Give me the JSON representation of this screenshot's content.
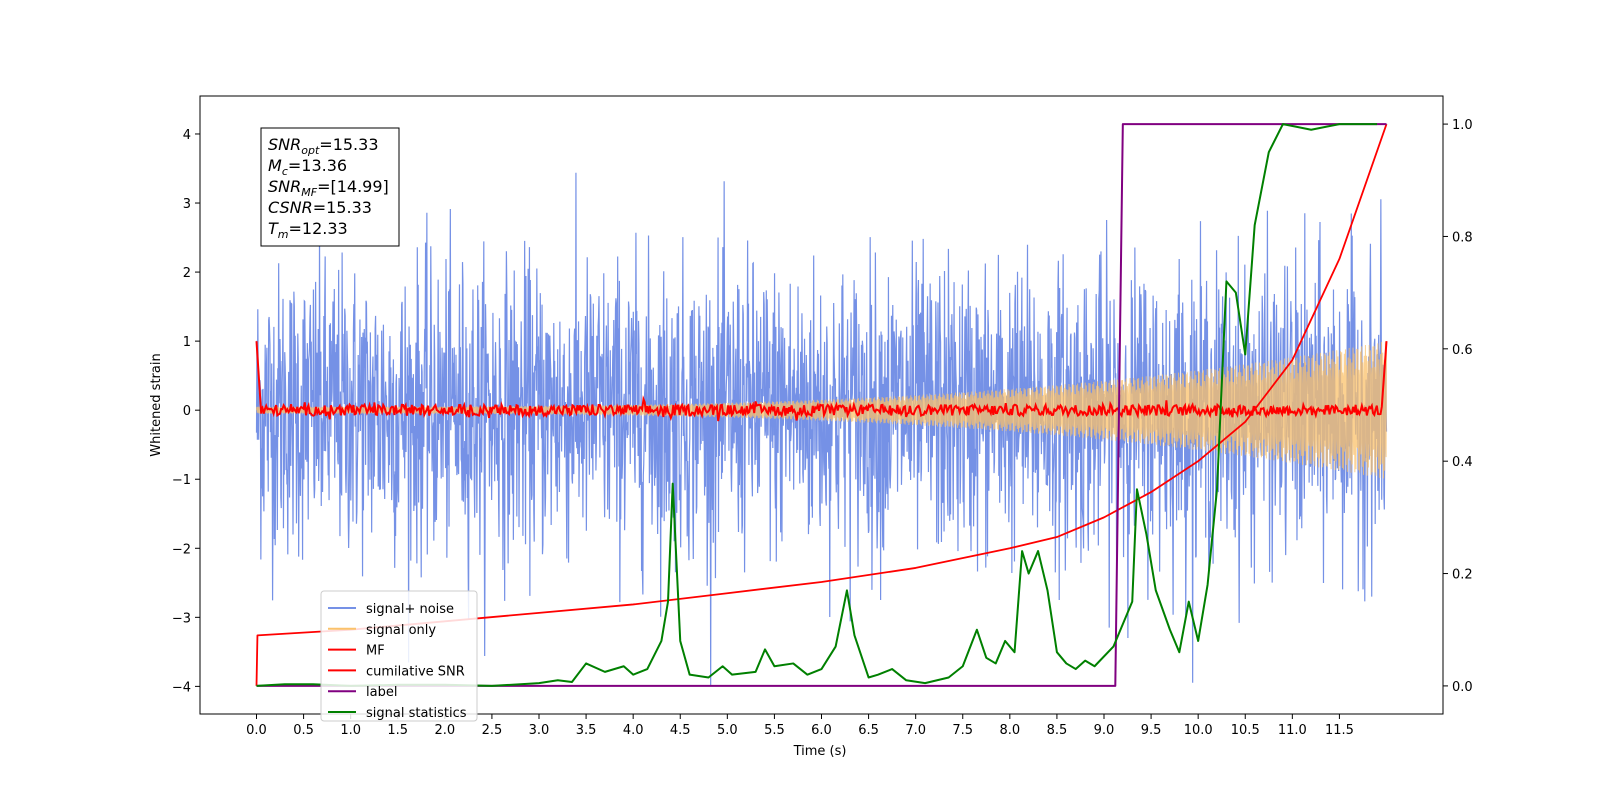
{
  "chart_data": {
    "type": "line",
    "xlabel": "Time (s)",
    "ylabel_left": "Whitened strain",
    "ylabel_right": "",
    "xlim": [
      -0.6,
      12.6
    ],
    "ylim_left": [
      -4.4,
      4.55
    ],
    "ylim_right": [
      -0.05,
      1.05
    ],
    "x_ticks": [
      "0.0",
      "0.5",
      "1.0",
      "1.5",
      "2.0",
      "2.5",
      "3.0",
      "3.5",
      "4.0",
      "4.5",
      "5.0",
      "5.5",
      "6.0",
      "6.5",
      "7.0",
      "7.5",
      "8.0",
      "8.5",
      "9.0",
      "9.5",
      "10.0",
      "10.5",
      "11.0",
      "11.5"
    ],
    "y_ticks_left": [
      "−4",
      "−3",
      "−2",
      "−1",
      "0",
      "1",
      "2",
      "3",
      "4"
    ],
    "y_ticks_right": [
      "0.0",
      "0.2",
      "0.4",
      "0.6",
      "0.8",
      "1.0"
    ],
    "grid": false,
    "legend_position": "lower-left",
    "colors": {
      "signal_noise": "#7591e6",
      "signal_only": "#fbc26b",
      "mf": "#ff0000",
      "cumulative_snr": "#ff0000",
      "label": "#800080",
      "signal_statistics": "#008000"
    },
    "series": [
      {
        "name": "signal+ noise",
        "axis": "left",
        "description_values": {
          "x_range": [
            0.0,
            12.0
          ],
          "amplitude_approx": 2.5,
          "peak_max": 4.0
        }
      },
      {
        "name": "signal only",
        "axis": "left",
        "description_values": {
          "x_range": [
            0.0,
            12.0
          ],
          "envelope_start": 0.05,
          "envelope_end": 1.0
        }
      },
      {
        "name": "MF",
        "axis": "left",
        "points": [
          [
            0.0,
            1.0
          ],
          [
            0.05,
            -0.05
          ],
          [
            12.0,
            0.0
          ],
          [
            12.0,
            1.0
          ]
        ]
      },
      {
        "name": "cumilative SNR",
        "axis": "right",
        "points": [
          [
            0.0,
            0.0
          ],
          [
            0.01,
            0.09
          ],
          [
            1.0,
            0.1
          ],
          [
            2.0,
            0.115
          ],
          [
            3.0,
            0.13
          ],
          [
            4.0,
            0.145
          ],
          [
            5.0,
            0.165
          ],
          [
            6.0,
            0.185
          ],
          [
            7.0,
            0.21
          ],
          [
            8.0,
            0.245
          ],
          [
            8.5,
            0.265
          ],
          [
            9.0,
            0.3
          ],
          [
            9.5,
            0.345
          ],
          [
            10.0,
            0.4
          ],
          [
            10.5,
            0.47
          ],
          [
            11.0,
            0.58
          ],
          [
            11.5,
            0.76
          ],
          [
            12.0,
            1.0
          ]
        ]
      },
      {
        "name": "label",
        "axis": "right",
        "points": [
          [
            0.0,
            0.0
          ],
          [
            9.12,
            0.0
          ],
          [
            9.2,
            1.0
          ],
          [
            12.0,
            1.0
          ]
        ]
      },
      {
        "name": "signal statistics",
        "axis": "right",
        "points": [
          [
            0.0,
            0.0
          ],
          [
            0.3,
            0.003
          ],
          [
            0.6,
            0.003
          ],
          [
            1.0,
            0.0
          ],
          [
            1.5,
            0.002
          ],
          [
            2.0,
            0.002
          ],
          [
            2.5,
            0.0
          ],
          [
            3.0,
            0.005
          ],
          [
            3.2,
            0.01
          ],
          [
            3.35,
            0.007
          ],
          [
            3.5,
            0.04
          ],
          [
            3.7,
            0.025
          ],
          [
            3.9,
            0.035
          ],
          [
            4.0,
            0.02
          ],
          [
            4.15,
            0.03
          ],
          [
            4.3,
            0.08
          ],
          [
            4.37,
            0.15
          ],
          [
            4.42,
            0.36
          ],
          [
            4.5,
            0.08
          ],
          [
            4.6,
            0.02
          ],
          [
            4.8,
            0.015
          ],
          [
            4.95,
            0.035
          ],
          [
            5.05,
            0.02
          ],
          [
            5.3,
            0.025
          ],
          [
            5.4,
            0.065
          ],
          [
            5.5,
            0.035
          ],
          [
            5.7,
            0.04
          ],
          [
            5.85,
            0.02
          ],
          [
            6.0,
            0.03
          ],
          [
            6.15,
            0.07
          ],
          [
            6.27,
            0.17
          ],
          [
            6.35,
            0.09
          ],
          [
            6.5,
            0.015
          ],
          [
            6.6,
            0.02
          ],
          [
            6.75,
            0.03
          ],
          [
            6.9,
            0.01
          ],
          [
            7.1,
            0.005
          ],
          [
            7.35,
            0.015
          ],
          [
            7.5,
            0.035
          ],
          [
            7.65,
            0.1
          ],
          [
            7.75,
            0.05
          ],
          [
            7.85,
            0.04
          ],
          [
            7.95,
            0.08
          ],
          [
            8.05,
            0.06
          ],
          [
            8.13,
            0.24
          ],
          [
            8.2,
            0.2
          ],
          [
            8.3,
            0.24
          ],
          [
            8.4,
            0.17
          ],
          [
            8.5,
            0.06
          ],
          [
            8.6,
            0.04
          ],
          [
            8.7,
            0.03
          ],
          [
            8.8,
            0.045
          ],
          [
            8.9,
            0.035
          ],
          [
            9.1,
            0.07
          ],
          [
            9.3,
            0.15
          ],
          [
            9.35,
            0.35
          ],
          [
            9.45,
            0.27
          ],
          [
            9.55,
            0.17
          ],
          [
            9.7,
            0.1
          ],
          [
            9.8,
            0.06
          ],
          [
            9.9,
            0.15
          ],
          [
            10.0,
            0.08
          ],
          [
            10.1,
            0.18
          ],
          [
            10.2,
            0.35
          ],
          [
            10.3,
            0.72
          ],
          [
            10.4,
            0.7
          ],
          [
            10.5,
            0.59
          ],
          [
            10.6,
            0.82
          ],
          [
            10.75,
            0.95
          ],
          [
            10.9,
            1.0
          ],
          [
            11.2,
            0.99
          ],
          [
            11.5,
            1.0
          ],
          [
            11.9,
            1.0
          ]
        ]
      }
    ],
    "legend": [
      "signal+ noise",
      "signal only",
      "MF",
      "cumilative SNR",
      "label",
      "signal statistics"
    ],
    "annotation": {
      "lines": [
        {
          "base": "SNR",
          "sub": "opt",
          "rest": "=15.33"
        },
        {
          "base": "M",
          "sub": "c",
          "rest": "=13.36"
        },
        {
          "base": "SNR",
          "sub": "MF",
          "rest": "=[14.99]"
        },
        {
          "base": "CSNR",
          "sub": "",
          "rest": "=15.33"
        },
        {
          "base": "T",
          "sub": "m",
          "rest": "=12.33"
        }
      ]
    }
  }
}
